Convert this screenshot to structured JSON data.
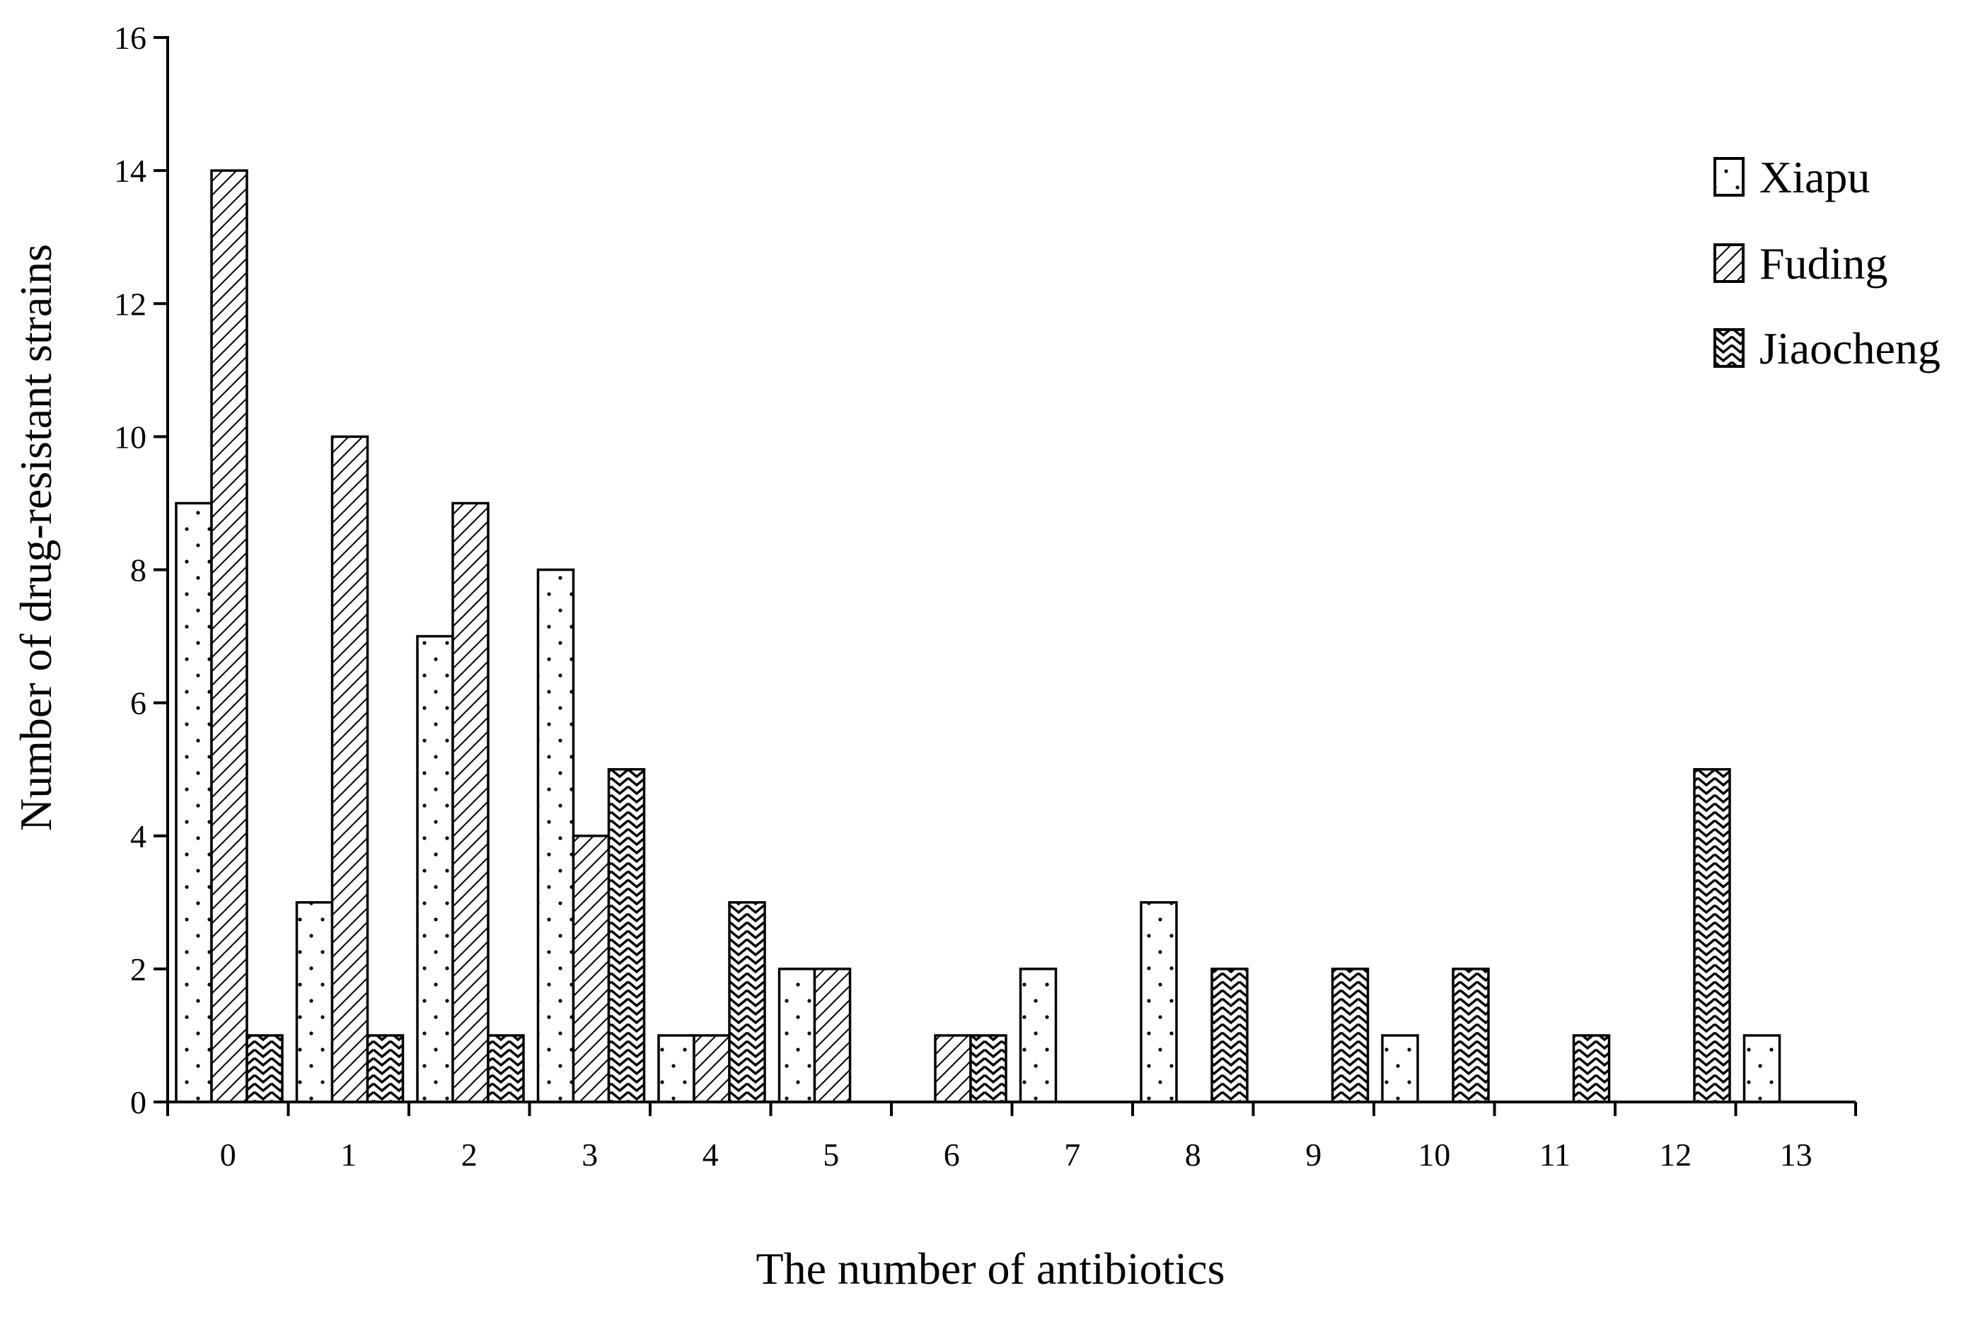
{
  "chart_data": {
    "type": "bar",
    "title": "",
    "xlabel": "The number of antibiotics",
    "ylabel": "Number of drug-resistant strains",
    "categories": [
      "0",
      "1",
      "2",
      "3",
      "4",
      "5",
      "6",
      "7",
      "8",
      "9",
      "10",
      "11",
      "12",
      "13"
    ],
    "ylim": [
      0,
      16
    ],
    "yticks": [
      "0",
      "2",
      "4",
      "6",
      "8",
      "10",
      "12",
      "14",
      "16"
    ],
    "grid": false,
    "legend_position": "top-right",
    "series": [
      {
        "name": "Xiapu",
        "pattern": "dots",
        "values": [
          9,
          3,
          7,
          8,
          1,
          2,
          0,
          2,
          3,
          0,
          1,
          0,
          0,
          1
        ]
      },
      {
        "name": "Fuding",
        "pattern": "diagonal-hatch",
        "values": [
          14,
          10,
          9,
          4,
          1,
          2,
          1,
          0,
          0,
          0,
          0,
          0,
          0,
          0
        ]
      },
      {
        "name": "Jiaocheng",
        "pattern": "zigzag-hatch",
        "values": [
          1,
          1,
          1,
          5,
          3,
          0,
          1,
          0,
          2,
          2,
          2,
          1,
          5,
          0
        ]
      }
    ],
    "colors": {
      "fill": "#ffffff",
      "stroke": "#000000"
    }
  }
}
